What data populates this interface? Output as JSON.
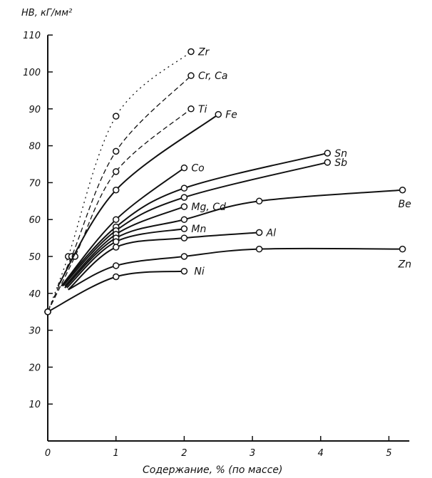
{
  "chart_data": {
    "type": "line",
    "title": "",
    "ylabel": "HB, кГ/мм²",
    "xlabel": "Содержание, % (по массе)",
    "xlim": [
      0,
      5.3
    ],
    "ylim": [
      0,
      110
    ],
    "xticks": [
      "0",
      "1",
      "2",
      "3",
      "4",
      "5"
    ],
    "yticks": [
      "10",
      "20",
      "30",
      "40",
      "50",
      "60",
      "70",
      "80",
      "90",
      "100",
      "110"
    ],
    "grid": false,
    "series": [
      {
        "name": "Zr",
        "style": "dotted",
        "points": [
          [
            0,
            35
          ],
          [
            0.3,
            50
          ],
          [
            1,
            88
          ],
          [
            2.1,
            105.5
          ]
        ]
      },
      {
        "name": "Cr, Ca",
        "style": "dashed",
        "points": [
          [
            0,
            35
          ],
          [
            0.35,
            50
          ],
          [
            1,
            78.5
          ],
          [
            2.1,
            99
          ]
        ]
      },
      {
        "name": "Ti",
        "style": "dashed",
        "points": [
          [
            0,
            35
          ],
          [
            0.4,
            50
          ],
          [
            1,
            73
          ],
          [
            2.1,
            90
          ]
        ]
      },
      {
        "name": "Fe",
        "style": "solid",
        "points": [
          [
            0.15,
            42
          ],
          [
            1,
            68
          ],
          [
            2.5,
            88.5
          ]
        ]
      },
      {
        "name": "Co",
        "style": "solid",
        "points": [
          [
            0.2,
            42
          ],
          [
            1,
            60
          ],
          [
            2,
            74
          ]
        ]
      },
      {
        "name": "Sn",
        "style": "solid",
        "points": [
          [
            0.2,
            42
          ],
          [
            1,
            58
          ],
          [
            2,
            68.5
          ],
          [
            4.1,
            78
          ]
        ]
      },
      {
        "name": "Sb",
        "style": "solid",
        "points": [
          [
            0.22,
            42
          ],
          [
            1,
            57
          ],
          [
            2,
            66
          ],
          [
            4.1,
            75.5
          ]
        ]
      },
      {
        "name": "Mg, Cd",
        "style": "solid",
        "points": [
          [
            0.25,
            42
          ],
          [
            1,
            56
          ],
          [
            2,
            63.5
          ]
        ]
      },
      {
        "name": "Be",
        "style": "solid",
        "points": [
          [
            0.25,
            41.5
          ],
          [
            1,
            55
          ],
          [
            2,
            60
          ],
          [
            3.1,
            65
          ],
          [
            5.2,
            68
          ]
        ]
      },
      {
        "name": "Mn",
        "style": "solid",
        "points": [
          [
            0.28,
            41.5
          ],
          [
            1,
            54
          ],
          [
            2,
            57.5
          ]
        ]
      },
      {
        "name": "Al",
        "style": "solid",
        "points": [
          [
            0.3,
            41
          ],
          [
            1,
            52.5
          ],
          [
            2,
            55
          ],
          [
            3.1,
            56.5
          ]
        ]
      },
      {
        "name": "Zn",
        "style": "solid",
        "points": [
          [
            0.3,
            41
          ],
          [
            1,
            47.5
          ],
          [
            2,
            50
          ],
          [
            3.1,
            52
          ],
          [
            5.2,
            52
          ]
        ]
      },
      {
        "name": "Ni",
        "style": "solid",
        "points": [
          [
            0,
            35
          ],
          [
            1,
            44.5
          ],
          [
            2,
            46
          ]
        ]
      }
    ]
  }
}
